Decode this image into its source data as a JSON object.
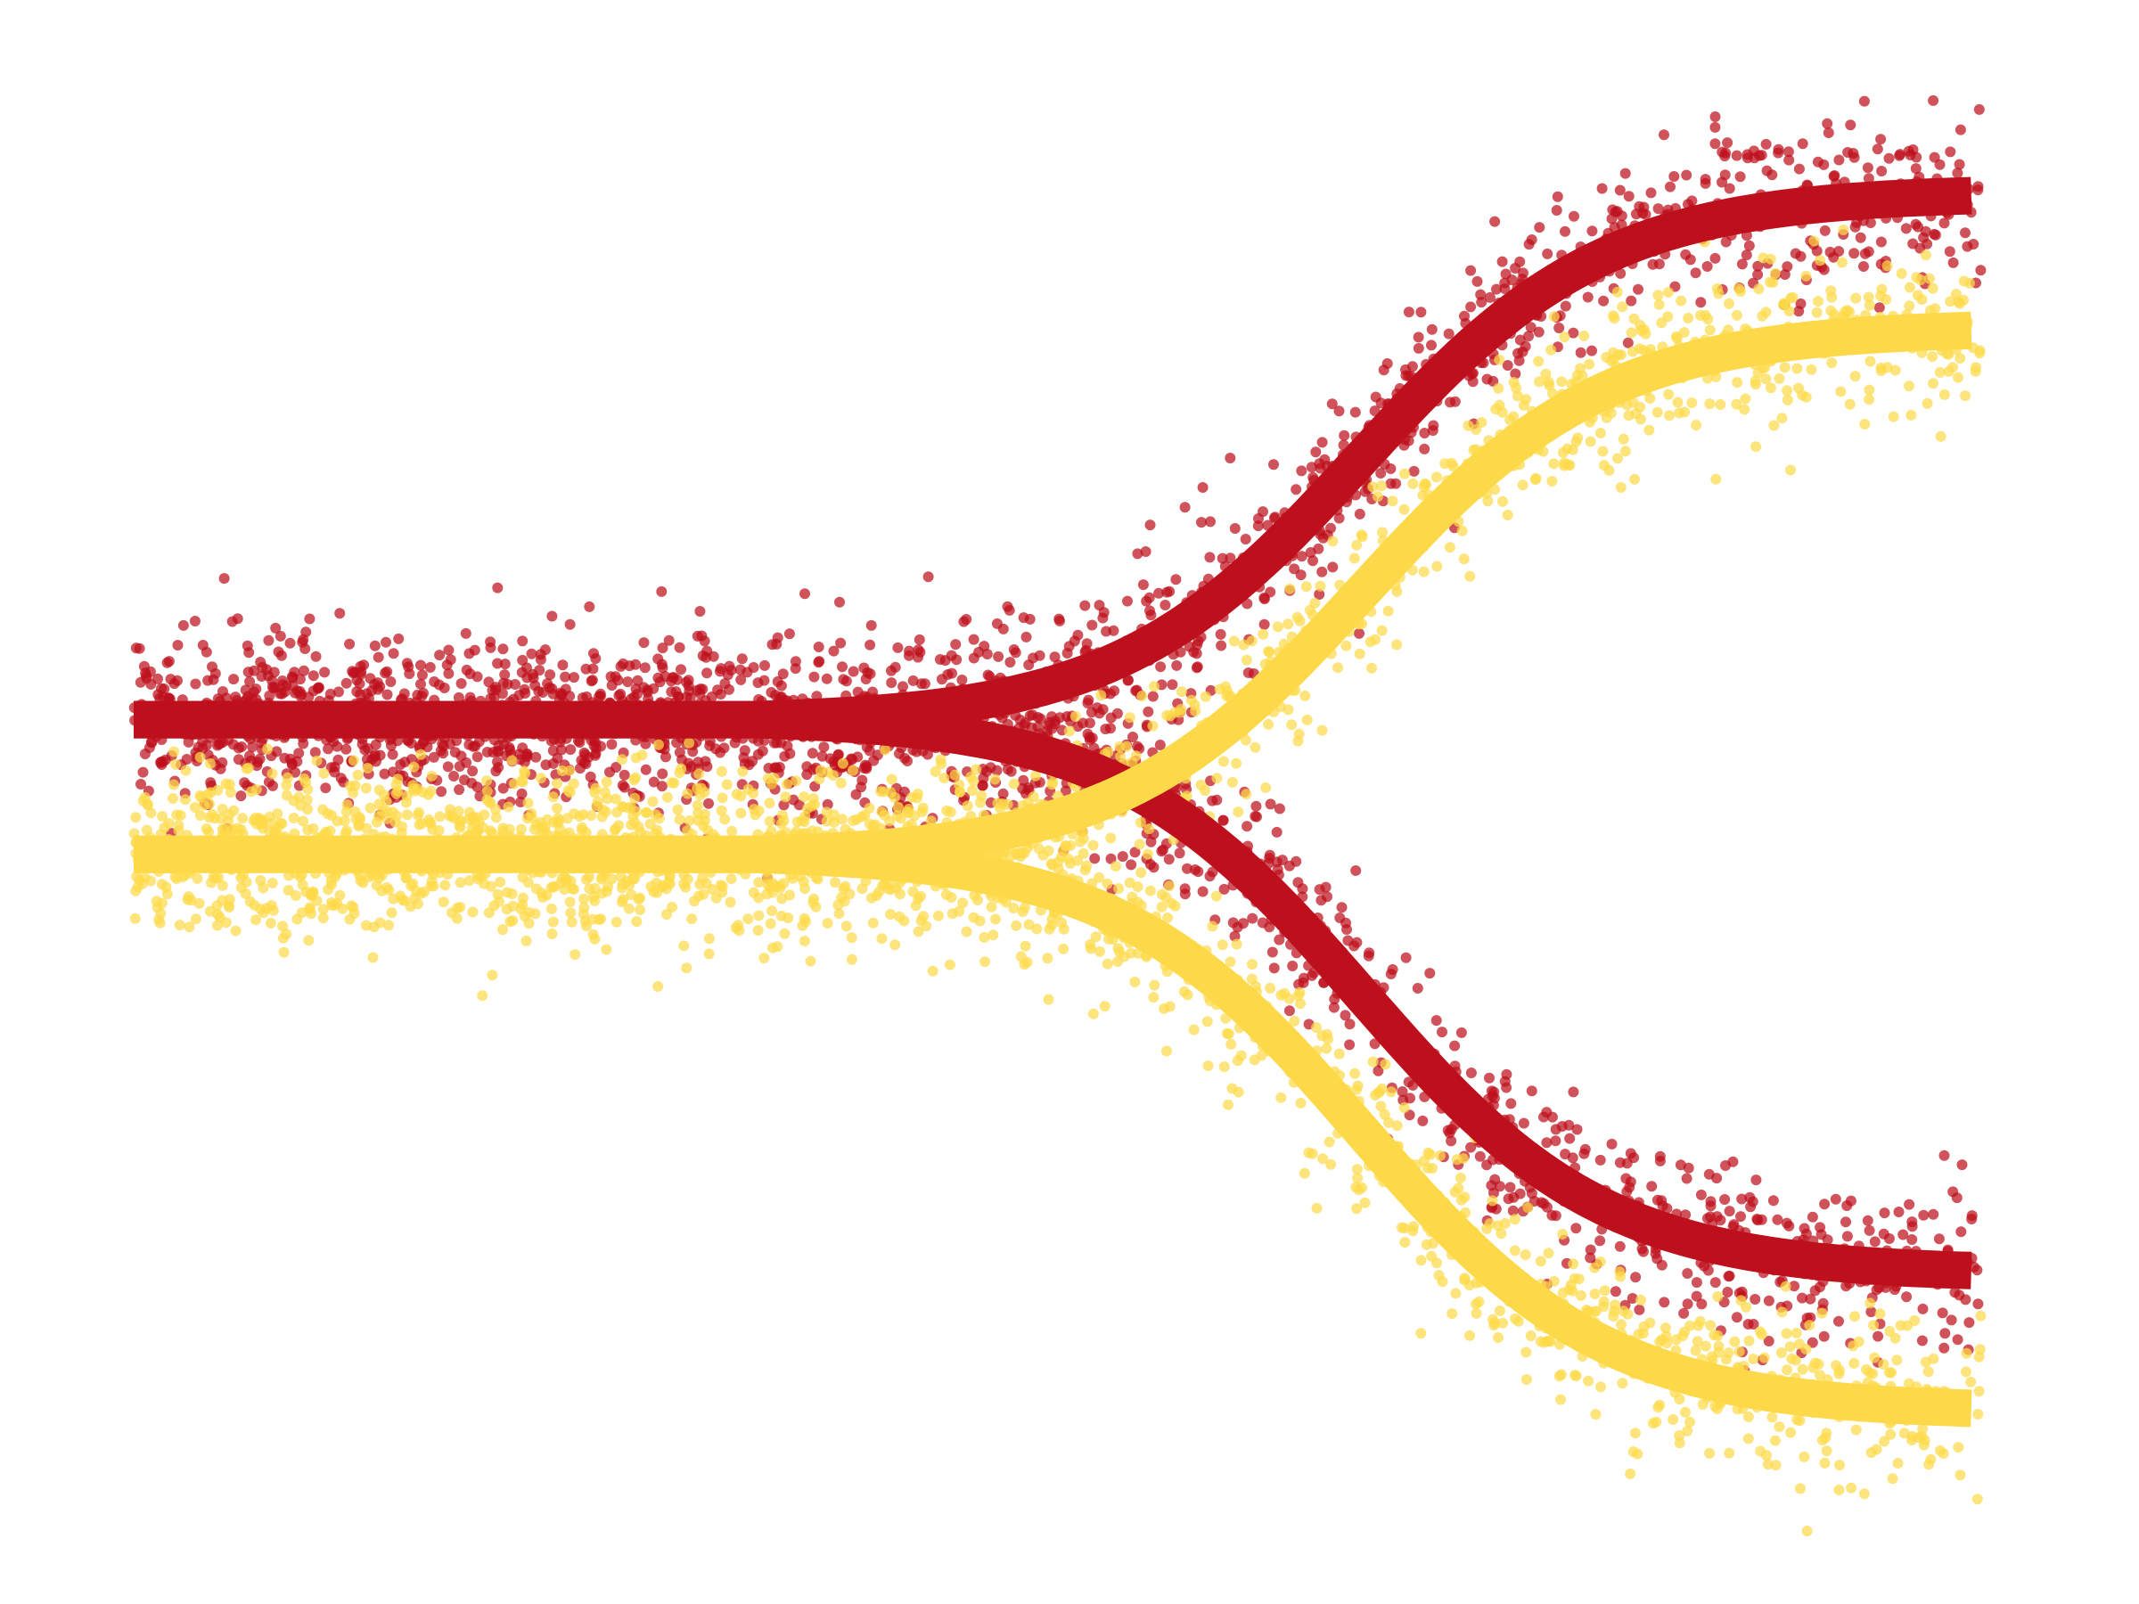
{
  "chart_data": {
    "type": "line",
    "title": "",
    "xlabel": "",
    "ylabel": "",
    "xlim": [
      0,
      1
    ],
    "ylim": [
      0,
      1
    ],
    "grid": false,
    "axes_visible": false,
    "legend": "none",
    "colors": {
      "red": "#be0f1c",
      "yellow": "#fdd94a"
    },
    "noise": {
      "points_per_branch": 1400,
      "spread": 0.05
    },
    "series": [
      {
        "color": "red",
        "segments": [
          {
            "x": [
              0.025,
              0.34
            ],
            "y0": 0.555,
            "y1": 0.555
          }
        ],
        "branches": [
          {
            "x0": 0.34,
            "x1": 0.96,
            "y1": 0.905
          },
          {
            "x0": 0.34,
            "x1": 0.96,
            "y1": 0.187
          }
        ]
      },
      {
        "color": "yellow",
        "segments": [
          {
            "x": [
              0.025,
              0.34
            ],
            "y0": 0.465,
            "y1": 0.465
          }
        ],
        "branches": [
          {
            "x0": 0.34,
            "x1": 0.96,
            "y1": 0.815
          },
          {
            "x0": 0.34,
            "x1": 0.96,
            "y1": 0.095
          }
        ]
      }
    ]
  }
}
